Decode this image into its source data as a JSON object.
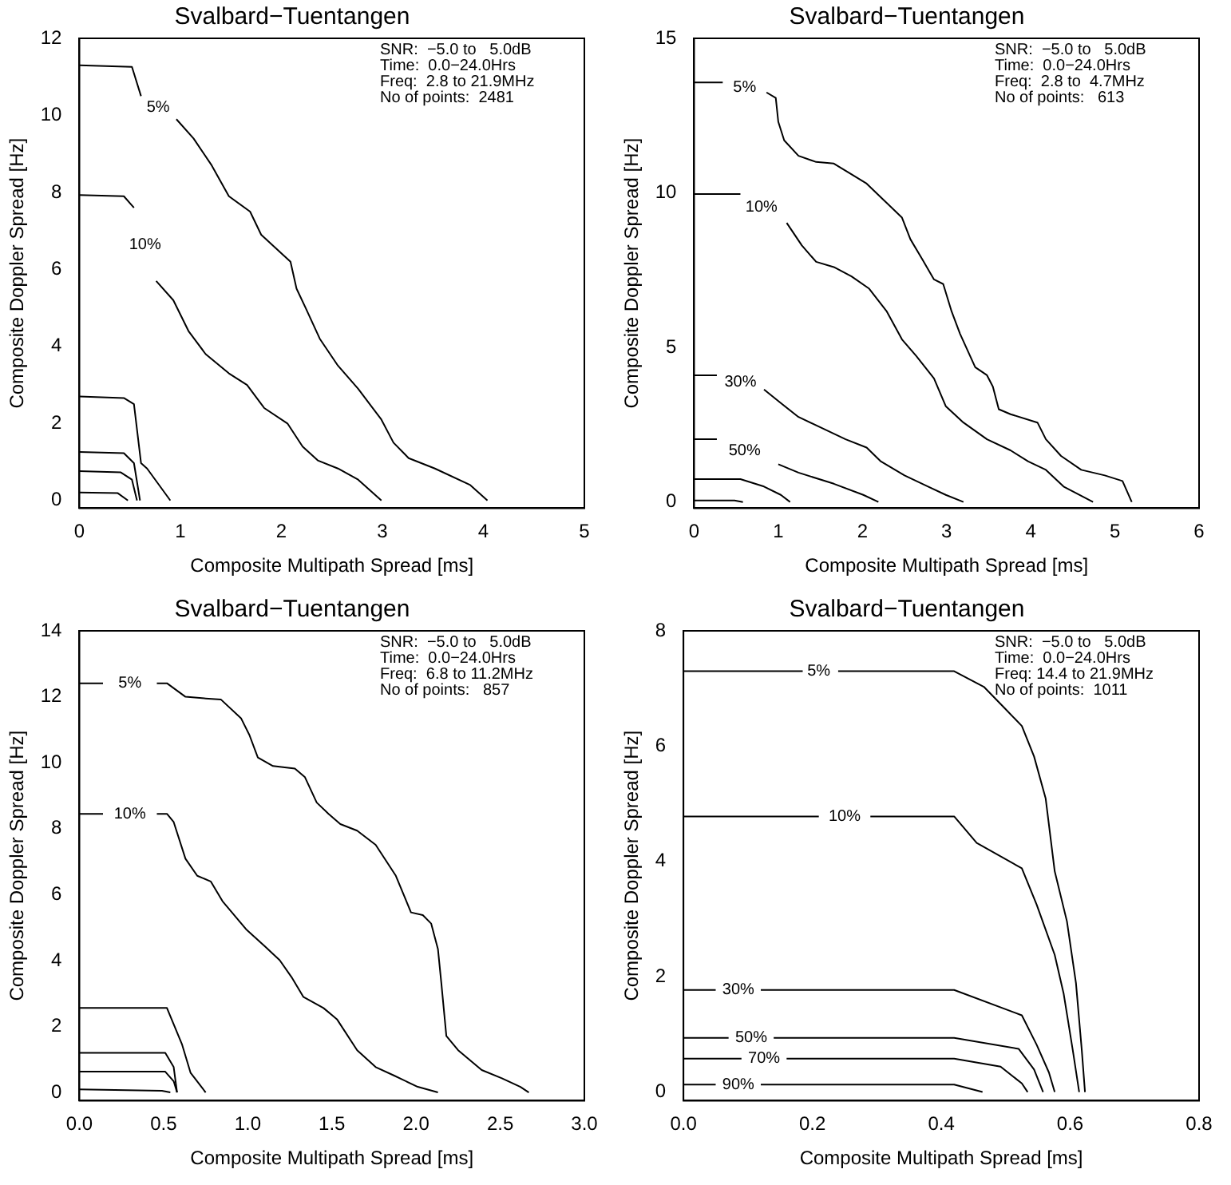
{
  "chart_data": [
    {
      "type": "line",
      "title": "Svalbard−Tuentangen",
      "xlabel": "Composite Multipath Spread [ms]",
      "ylabel": "Composite Doppler Spread [Hz]",
      "annotations": [
        "SNR:  −5.0 to   5.0dB",
        "Time:  0.0−24.0Hrs",
        "Freq:  2.8 to 21.9MHz",
        "No of points:  2481"
      ],
      "xlim": [
        0,
        5
      ],
      "ylim": [
        -0.2,
        12
      ],
      "xticks": [
        0,
        1,
        2,
        3,
        4,
        5
      ],
      "yticks": [
        0,
        2,
        4,
        6,
        8,
        10,
        12
      ],
      "series": [
        {
          "name": "5%",
          "color": "#000000",
          "x": [
            0,
            0.52,
            0.61,
            0.78,
            0.96,
            1.13,
            1.31,
            1.48,
            1.69,
            1.8,
            2.09,
            2.15,
            2.24,
            2.38,
            2.56,
            2.76,
            2.99,
            3.11,
            3.26,
            3.52,
            3.87,
            4.04
          ],
          "values": [
            11.3,
            11.26,
            10.5,
            null,
            9.9,
            9.4,
            8.7,
            7.9,
            7.5,
            6.9,
            6.2,
            5.5,
            5.0,
            4.2,
            3.5,
            2.9,
            2.1,
            1.5,
            1.1,
            0.83,
            0.4,
            0
          ]
        },
        {
          "name": "10%",
          "color": "#000000",
          "x": [
            0,
            0.44,
            0.54,
            0.65,
            0.76,
            0.93,
            1.08,
            1.25,
            1.48,
            1.66,
            1.83,
            2.06,
            2.21,
            2.36,
            2.56,
            2.76,
            2.99
          ],
          "values": [
            7.93,
            7.9,
            7.6,
            null,
            5.7,
            5.2,
            4.4,
            3.8,
            3.3,
            3.0,
            2.4,
            2.0,
            1.4,
            1.04,
            0.83,
            0.54,
            0
          ]
        },
        {
          "color": "#000000",
          "x": [
            0,
            0.44,
            0.54,
            0.61,
            0.67,
            0.9
          ],
          "values": [
            2.7,
            2.66,
            2.5,
            0.97,
            0.83,
            0
          ]
        },
        {
          "color": "#000000",
          "x": [
            0,
            0.44,
            0.54,
            0.6
          ],
          "values": [
            1.26,
            1.23,
            0.97,
            0
          ]
        },
        {
          "color": "#000000",
          "x": [
            0,
            0.41,
            0.52,
            0.57
          ],
          "values": [
            0.76,
            0.73,
            0.54,
            0
          ]
        },
        {
          "color": "#000000",
          "x": [
            0,
            0.38,
            0.48
          ],
          "values": [
            0.21,
            0.19,
            0
          ]
        }
      ]
    },
    {
      "type": "line",
      "title": "Svalbard−Tuentangen",
      "xlabel": "Composite Multipath Spread [ms]",
      "ylabel": "Composite Doppler Spread [Hz]",
      "annotations": [
        "SNR:  −5.0 to   5.0dB",
        "Time:  0.0−24.0Hrs",
        "Freq:  2.8 to  4.7MHz",
        "No of points:   613"
      ],
      "xlim": [
        0,
        6
      ],
      "ylim": [
        -0.2,
        15
      ],
      "xticks": [
        0,
        1,
        2,
        3,
        4,
        5,
        6
      ],
      "yticks": [
        0,
        5,
        10,
        15
      ],
      "series": [
        {
          "name": "5%",
          "color": "#000000",
          "x": [
            0,
            0.34,
            0.6,
            0.86,
            0.97,
            1.0,
            1.07,
            1.24,
            1.45,
            1.66,
            1.84,
            2.05,
            2.26,
            2.47,
            2.57,
            2.71,
            2.85,
            2.96,
            3.06,
            3.16,
            3.34,
            3.48,
            3.55,
            3.62,
            3.76,
            4.08,
            4.18,
            4.36,
            4.6,
            4.88,
            5.09,
            5.2
          ],
          "values": [
            13.57,
            13.57,
            null,
            13.25,
            13.07,
            12.3,
            11.7,
            11.2,
            11.0,
            10.95,
            10.65,
            10.3,
            9.75,
            9.2,
            8.5,
            7.86,
            7.2,
            7.05,
            6.16,
            5.44,
            4.36,
            4.1,
            3.73,
            3.0,
            2.84,
            2.57,
            2.03,
            1.49,
            1.04,
            0.86,
            0.68,
            0
          ]
        },
        {
          "name": "10%",
          "color": "#000000",
          "x": [
            0,
            0.55,
            0.8,
            1.1,
            1.28,
            1.45,
            1.66,
            1.87,
            2.08,
            2.29,
            2.47,
            2.64,
            2.85,
            2.99,
            3.2,
            3.48,
            3.76,
            3.97,
            4.18,
            4.39,
            4.74
          ],
          "values": [
            9.96,
            9.96,
            null,
            9.03,
            8.3,
            7.77,
            7.6,
            7.3,
            6.9,
            6.16,
            5.26,
            4.72,
            4.0,
            3.1,
            2.57,
            2.03,
            1.67,
            1.31,
            1.04,
            0.5,
            0
          ]
        },
        {
          "name": "30%",
          "color": "#000000",
          "x": [
            0,
            0.27,
            0.55,
            0.83,
            1.03,
            1.24,
            1.52,
            1.8,
            2.05,
            2.22,
            2.5,
            2.78,
            2.99,
            3.2
          ],
          "values": [
            4.1,
            4.1,
            null,
            3.64,
            3.2,
            2.75,
            2.39,
            2.03,
            1.76,
            1.31,
            0.86,
            0.5,
            0.23,
            0
          ]
        },
        {
          "name": "50%",
          "color": "#000000",
          "x": [
            0,
            0.27,
            0.6,
            1.0,
            1.24,
            1.66,
            2.01,
            2.19
          ],
          "values": [
            2.03,
            2.03,
            null,
            1.22,
            0.95,
            0.59,
            0.23,
            0
          ]
        },
        {
          "color": "#000000",
          "x": [
            0,
            0.55,
            0.83,
            1.03,
            1.14
          ],
          "values": [
            0.74,
            0.74,
            0.5,
            0.23,
            0
          ]
        },
        {
          "color": "#000000",
          "x": [
            0,
            0.48,
            0.58
          ],
          "values": [
            0.05,
            0.05,
            0
          ]
        }
      ]
    },
    {
      "type": "line",
      "title": "Svalbard−Tuentangen",
      "xlabel": "Composite Multipath Spread [ms]",
      "ylabel": "Composite Doppler Spread [Hz]",
      "annotations": [
        "SNR:  −5.0 to   5.0dB",
        "Time:  0.0−24.0Hrs",
        "Freq:  6.8 to 11.2MHz",
        "No of points:   857"
      ],
      "xlim": [
        0,
        3
      ],
      "ylim": [
        -0.25,
        14
      ],
      "xticks": [
        {
          "value": 0,
          "label": "0.0"
        },
        {
          "value": 0.5,
          "label": "0.5"
        },
        {
          "value": 1,
          "label": "1.0"
        },
        {
          "value": 1.5,
          "label": "1.5"
        },
        {
          "value": 2,
          "label": "2.0"
        },
        {
          "value": 2.5,
          "label": "2.5"
        },
        {
          "value": 3,
          "label": "3.0"
        }
      ],
      "yticks": [
        0,
        2,
        4,
        6,
        8,
        10,
        12,
        14
      ],
      "series": [
        {
          "name": "5%",
          "color": "#000000",
          "x": [
            0,
            0.14,
            0.3,
            0.46,
            0.52,
            0.63,
            0.75,
            0.84,
            0.96,
            1.01,
            1.06,
            1.15,
            1.28,
            1.34,
            1.41,
            1.48,
            1.55,
            1.65,
            1.76,
            1.88,
            1.97,
            2.04,
            2.09,
            2.13,
            2.15,
            2.18,
            2.25,
            2.39,
            2.51,
            2.62,
            2.67
          ],
          "values": [
            12.41,
            12.41,
            null,
            12.41,
            12.41,
            12.0,
            11.95,
            11.92,
            11.35,
            10.84,
            10.16,
            9.9,
            9.82,
            9.56,
            8.79,
            8.45,
            8.14,
            7.94,
            7.51,
            6.57,
            5.46,
            5.38,
            5.12,
            4.35,
            3.33,
            1.71,
            1.28,
            0.68,
            0.43,
            0.17,
            0
          ]
        },
        {
          "name": "10%",
          "color": "#000000",
          "x": [
            0,
            0.14,
            0.3,
            0.46,
            0.52,
            0.56,
            0.63,
            0.7,
            0.78,
            0.85,
            0.99,
            1.1,
            1.19,
            1.26,
            1.33,
            1.45,
            1.53,
            1.65,
            1.76,
            1.87,
            2.01,
            2.13
          ],
          "values": [
            8.45,
            8.45,
            null,
            8.45,
            8.45,
            8.2,
            7.09,
            6.57,
            6.4,
            5.8,
            4.95,
            4.44,
            4.01,
            3.5,
            2.9,
            2.56,
            2.22,
            1.28,
            0.77,
            0.51,
            0.17,
            0
          ]
        },
        {
          "color": "#000000",
          "x": [
            0,
            0.52,
            0.61,
            0.66,
            0.75
          ],
          "values": [
            2.56,
            2.56,
            1.45,
            0.6,
            0
          ]
        },
        {
          "color": "#000000",
          "x": [
            0,
            0.51,
            0.56,
            0.58
          ],
          "values": [
            1.2,
            1.2,
            0.77,
            0
          ]
        },
        {
          "color": "#000000",
          "x": [
            0,
            0.51,
            0.56,
            0.58
          ],
          "values": [
            0.63,
            0.63,
            0.34,
            0
          ]
        },
        {
          "color": "#000000",
          "x": [
            0,
            0.49,
            0.54
          ],
          "values": [
            0.09,
            0.05,
            0
          ]
        }
      ]
    },
    {
      "type": "line",
      "title": "Svalbard−Tuentangen",
      "xlabel": "Composite Multipath Spread [ms]",
      "ylabel": "Composite Doppler Spread [Hz]",
      "annotations": [
        "SNR:  −5.0 to   5.0dB",
        "Time:  0.0−24.0Hrs",
        "Freq: 14.4 to 21.9MHz",
        "No of points:  1011"
      ],
      "xlim": [
        0,
        0.8
      ],
      "ylim": [
        -0.15,
        8
      ],
      "xticks": [
        {
          "value": 0,
          "label": "0.0"
        },
        {
          "value": 0.2,
          "label": "0.2"
        },
        {
          "value": 0.4,
          "label": "0.4"
        },
        {
          "value": 0.6,
          "label": "0.6"
        },
        {
          "value": 0.8,
          "label": "0.8"
        }
      ],
      "yticks": [
        0,
        2,
        4,
        6,
        8
      ],
      "series": [
        {
          "name": "5%",
          "color": "#000000",
          "x": [
            0,
            0.185,
            0.21,
            0.24,
            0.42,
            0.466,
            0.5,
            0.525,
            0.544,
            0.562,
            0.576,
            0.595,
            0.609,
            0.618,
            0.623
          ],
          "values": [
            7.3,
            7.3,
            null,
            7.3,
            7.3,
            7.03,
            6.64,
            6.35,
            5.82,
            5.09,
            3.83,
            2.96,
            1.89,
            0.73,
            0
          ]
        },
        {
          "name": "10%",
          "color": "#000000",
          "x": [
            0,
            0.21,
            0.25,
            0.29,
            0.42,
            0.455,
            0.525,
            0.548,
            0.576,
            0.59,
            0.604,
            0.614
          ],
          "values": [
            4.78,
            4.78,
            null,
            4.78,
            4.78,
            4.32,
            3.88,
            3.25,
            2.38,
            1.7,
            0.73,
            0
          ]
        },
        {
          "name": "30%",
          "color": "#000000",
          "x": [
            0,
            0.05,
            0.085,
            0.12,
            0.42,
            0.525,
            0.548,
            0.567,
            0.576
          ],
          "values": [
            1.77,
            1.77,
            null,
            1.77,
            1.77,
            1.33,
            0.82,
            0.34,
            0
          ]
        },
        {
          "name": "50%",
          "color": "#000000",
          "x": [
            0,
            0.07,
            0.105,
            0.14,
            0.42,
            0.52,
            0.544,
            0.558
          ],
          "values": [
            0.94,
            0.94,
            null,
            0.94,
            0.94,
            0.75,
            0.39,
            0
          ]
        },
        {
          "name": "70%",
          "color": "#000000",
          "x": [
            0,
            0.09,
            0.125,
            0.16,
            0.42,
            0.492,
            0.525,
            0.534
          ],
          "values": [
            0.58,
            0.58,
            null,
            0.58,
            0.58,
            0.44,
            0.15,
            0
          ]
        },
        {
          "name": "90%",
          "color": "#000000",
          "x": [
            0,
            0.05,
            0.085,
            0.12,
            0.42,
            0.464
          ],
          "values": [
            0.13,
            0.13,
            null,
            0.13,
            0.13,
            0
          ]
        }
      ]
    }
  ]
}
